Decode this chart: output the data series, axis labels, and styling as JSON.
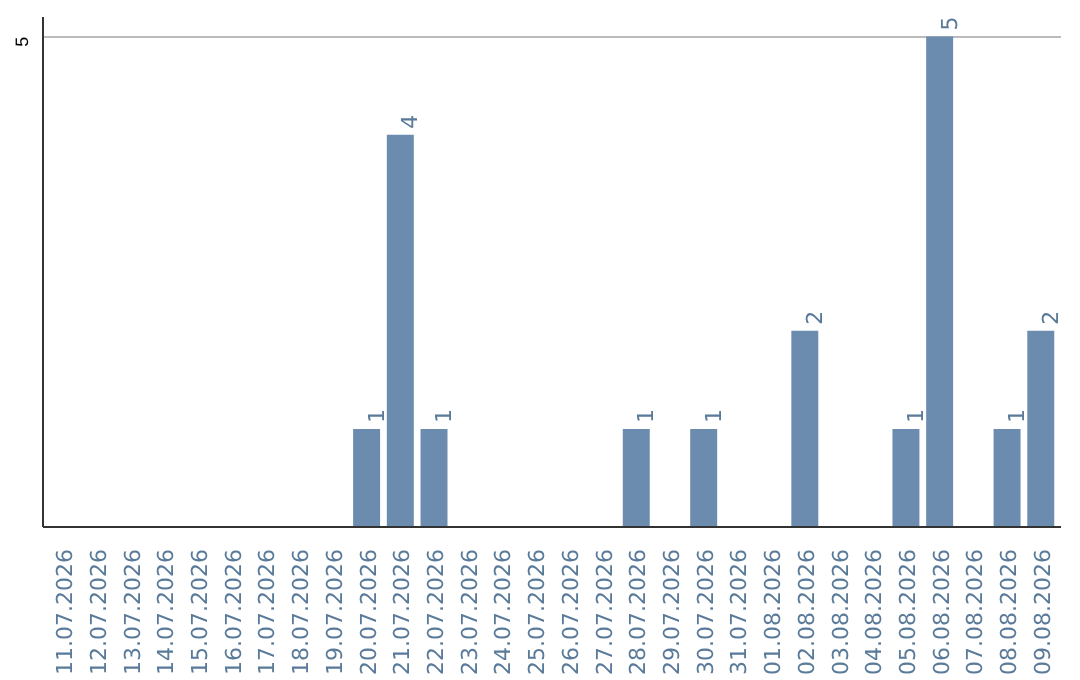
{
  "chart_data": {
    "type": "bar",
    "categories": [
      "11.07.2026",
      "12.07.2026",
      "13.07.2026",
      "14.07.2026",
      "15.07.2026",
      "16.07.2026",
      "17.07.2026",
      "18.07.2026",
      "19.07.2026",
      "20.07.2026",
      "21.07.2026",
      "22.07.2026",
      "23.07.2026",
      "24.07.2026",
      "25.07.2026",
      "26.07.2026",
      "27.07.2026",
      "28.07.2026",
      "29.07.2026",
      "30.07.2026",
      "31.07.2026",
      "01.08.2026",
      "02.08.2026",
      "03.08.2026",
      "04.08.2026",
      "05.08.2026",
      "06.08.2026",
      "07.08.2026",
      "08.08.2026",
      "09.08.2026"
    ],
    "values": [
      0,
      0,
      0,
      0,
      0,
      0,
      0,
      0,
      0,
      1,
      4,
      1,
      0,
      0,
      0,
      0,
      0,
      1,
      0,
      1,
      0,
      0,
      2,
      0,
      0,
      1,
      5,
      0,
      1,
      2
    ],
    "value_labels": [
      null,
      null,
      null,
      null,
      null,
      null,
      null,
      null,
      null,
      "1",
      "4",
      "1",
      null,
      null,
      null,
      null,
      null,
      "1",
      null,
      "1",
      null,
      null,
      "2",
      null,
      null,
      "1",
      "5",
      null,
      "1",
      "2"
    ],
    "color": "#6b8cae",
    "ylim": [
      0,
      5.2
    ],
    "yticks": [
      5
    ],
    "grid": "y"
  }
}
